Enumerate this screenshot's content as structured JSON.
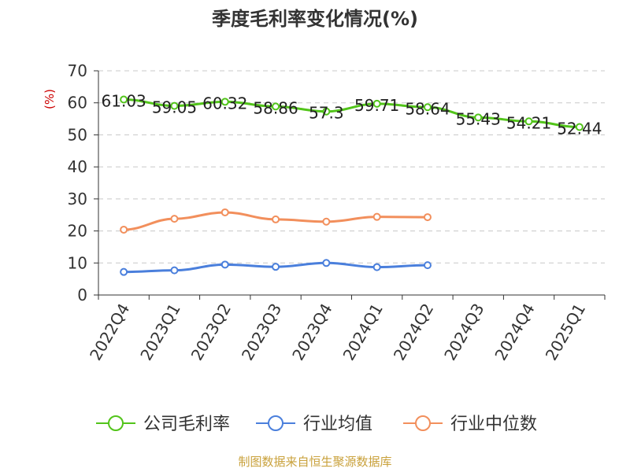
{
  "chart_data": {
    "type": "line",
    "title": "季度毛利率变化情况(%)",
    "ylabel": "(%)",
    "xlabel": "",
    "ylim": [
      0,
      70
    ],
    "yticks": [
      0,
      10,
      20,
      30,
      40,
      50,
      60,
      70
    ],
    "grid": true,
    "legend_position": "bottom",
    "categories": [
      "2022Q4",
      "2023Q1",
      "2023Q2",
      "2023Q3",
      "2023Q4",
      "2024Q1",
      "2024Q2",
      "2024Q3",
      "2024Q4",
      "2025Q1"
    ],
    "series": [
      {
        "name": "公司毛利率",
        "color": "#52c41a",
        "show_labels": true,
        "values": [
          61.03,
          59.05,
          60.32,
          58.86,
          57.3,
          59.71,
          58.64,
          55.43,
          54.21,
          52.44
        ],
        "labels": [
          "61.03",
          "59.05",
          "60.32",
          "58.86",
          "57.3",
          "59.71",
          "58.64",
          "55.43",
          "54.21",
          "52.44"
        ]
      },
      {
        "name": "行业均值",
        "color": "#4a7fdc",
        "show_labels": false,
        "values": [
          7.2,
          7.7,
          9.5,
          8.8,
          10.0,
          8.7,
          9.3,
          null,
          null,
          null
        ]
      },
      {
        "name": "行业中位数",
        "color": "#f28f5c",
        "show_labels": false,
        "values": [
          20.4,
          23.8,
          25.8,
          23.6,
          22.9,
          24.4,
          24.3,
          null,
          null,
          null
        ]
      }
    ],
    "source_note": "制图数据来自恒生聚源数据库",
    "title_color": "#333333",
    "ylabel_color": "#cc0000",
    "source_color": "#c9a13b"
  }
}
